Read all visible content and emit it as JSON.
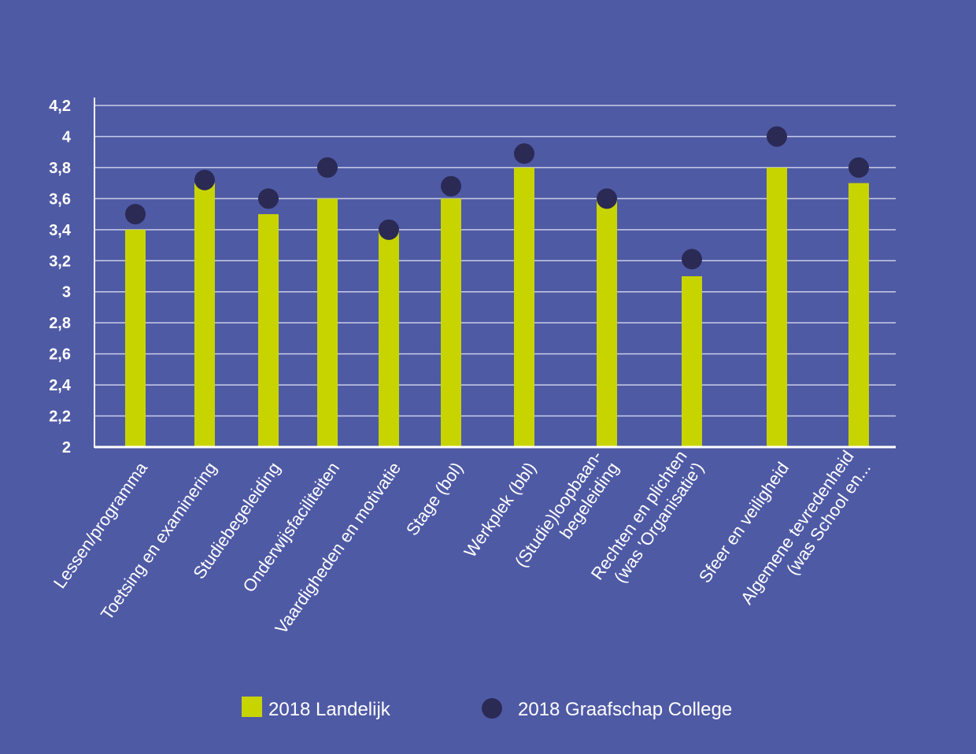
{
  "chart_data": {
    "type": "bar",
    "categories": [
      [
        "Lessen/programma"
      ],
      [
        "Toetsing en examinering"
      ],
      [
        "Studiebegeleiding"
      ],
      [
        "Onderwijsfaciliteiten"
      ],
      [
        "Vaardigheden en motivatie"
      ],
      [
        "Stage (bol)"
      ],
      [
        "Werkplek (bbl)"
      ],
      [
        "(Studie)loopbaan-",
        "begeleiding"
      ],
      [
        "Rechten en plichten",
        "(was 'Organisatie')"
      ],
      [
        "Sfeer en veiligheid"
      ],
      [
        "Algemene tevredenheid",
        "(was School en..."
      ]
    ],
    "series": [
      {
        "name": "2018 Landelijk",
        "type": "bar",
        "color": "#c8d400",
        "values": [
          3.4,
          3.7,
          3.5,
          3.6,
          3.4,
          3.6,
          3.8,
          3.6,
          3.1,
          3.8,
          3.7
        ]
      },
      {
        "name": "2018 Graafschap College",
        "type": "scatter",
        "color": "#2a2a55",
        "values": [
          3.5,
          3.72,
          3.6,
          3.8,
          3.4,
          3.68,
          3.89,
          3.6,
          3.21,
          4.0,
          3.8
        ]
      }
    ],
    "yticks": [
      "2",
      "2,2",
      "2,4",
      "2,6",
      "2,8",
      "3",
      "3,2",
      "3,4",
      "3,6",
      "3,8",
      "4",
      "4,2"
    ],
    "ylim": [
      2,
      4.2
    ],
    "grid": true,
    "legend_position": "bottom"
  }
}
